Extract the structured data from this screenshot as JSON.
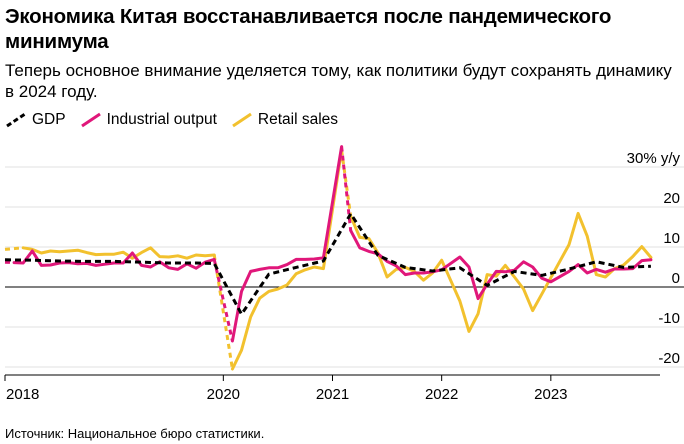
{
  "title": "Экономика Китая восстанавливается после пандемического минимума",
  "subtitle": "Теперь основное внимание уделяется тому, как политики будут сохранять динамику в 2024 году.",
  "source": "Источник: Национальное бюро статистики.",
  "colors": {
    "gdp": "#000000",
    "industrial": "#e0177a",
    "retail": "#f2c12e",
    "axis": "#000000",
    "grid": "#e2e2e2"
  },
  "chart_data": {
    "type": "line",
    "x_unit": "months since Jan 2018",
    "xlim": [
      0,
      72
    ],
    "ylim": [
      -22,
      33
    ],
    "y_ticks": [
      -20,
      -10,
      0,
      10,
      20,
      30
    ],
    "y_tick_labels": [
      "-20",
      "-10",
      "0",
      "10",
      "20",
      "30% y/y"
    ],
    "x_ticks": [
      0,
      24,
      36,
      48,
      60
    ],
    "x_tick_labels": [
      "2018",
      "2020",
      "2021",
      "2022",
      "2023"
    ],
    "legend_position": "top-left",
    "series": [
      {
        "name": "GDP",
        "style": "dashed",
        "points": [
          [
            0,
            6.8
          ],
          [
            3,
            6.7
          ],
          [
            6,
            6.5
          ],
          [
            9,
            6.4
          ],
          [
            12,
            6.4
          ],
          [
            15,
            6.2
          ],
          [
            18,
            6.0
          ],
          [
            21,
            6.0
          ],
          [
            23,
            5.9
          ],
          [
            26,
            -6.8
          ],
          [
            29,
            3.2
          ],
          [
            32,
            4.9
          ],
          [
            35,
            6.5
          ],
          [
            38,
            18.3
          ],
          [
            41,
            7.9
          ],
          [
            44,
            4.9
          ],
          [
            47,
            4.0
          ],
          [
            50,
            4.8
          ],
          [
            53,
            0.4
          ],
          [
            56,
            3.9
          ],
          [
            59,
            2.9
          ],
          [
            62,
            4.5
          ],
          [
            65,
            6.3
          ],
          [
            68,
            4.9
          ],
          [
            71,
            5.2
          ]
        ]
      },
      {
        "name": "Industrial output",
        "style": "solid",
        "dashed_until": 1,
        "dashed_gaps": [
          [
            23,
            25
          ],
          [
            37,
            38
          ],
          [
            49,
            50
          ],
          [
            61,
            62
          ]
        ],
        "points": [
          [
            0,
            6.2
          ],
          [
            1,
            6.1
          ],
          [
            2,
            6.0
          ],
          [
            3,
            9.0
          ],
          [
            4,
            5.4
          ],
          [
            5,
            5.5
          ],
          [
            6,
            6.0
          ],
          [
            7,
            6.1
          ],
          [
            8,
            5.8
          ],
          [
            9,
            5.9
          ],
          [
            10,
            5.4
          ],
          [
            11,
            5.7
          ],
          [
            12,
            6.0
          ],
          [
            13,
            6.0
          ],
          [
            14,
            8.5
          ],
          [
            15,
            5.4
          ],
          [
            16,
            5.0
          ],
          [
            17,
            6.3
          ],
          [
            18,
            4.8
          ],
          [
            19,
            4.4
          ],
          [
            20,
            5.8
          ],
          [
            21,
            4.7
          ],
          [
            22,
            6.2
          ],
          [
            23,
            6.9
          ],
          [
            25,
            -13.5
          ],
          [
            26,
            -1.1
          ],
          [
            27,
            3.9
          ],
          [
            28,
            4.4
          ],
          [
            29,
            4.8
          ],
          [
            30,
            4.8
          ],
          [
            31,
            5.6
          ],
          [
            32,
            6.9
          ],
          [
            33,
            6.9
          ],
          [
            34,
            7.0
          ],
          [
            35,
            7.3
          ],
          [
            37,
            35.1
          ],
          [
            38,
            14.1
          ],
          [
            39,
            9.8
          ],
          [
            40,
            8.9
          ],
          [
            41,
            8.3
          ],
          [
            42,
            6.4
          ],
          [
            43,
            5.3
          ],
          [
            44,
            3.1
          ],
          [
            45,
            3.5
          ],
          [
            46,
            3.5
          ],
          [
            47,
            3.8
          ],
          [
            48,
            4.3
          ],
          [
            50,
            7.5
          ],
          [
            51,
            5.0
          ],
          [
            52,
            -2.9
          ],
          [
            53,
            0.7
          ],
          [
            54,
            3.9
          ],
          [
            55,
            3.8
          ],
          [
            56,
            4.2
          ],
          [
            57,
            6.3
          ],
          [
            58,
            5.0
          ],
          [
            59,
            2.2
          ],
          [
            60,
            1.3
          ],
          [
            62,
            3.9
          ],
          [
            63,
            5.6
          ],
          [
            64,
            3.5
          ],
          [
            65,
            4.4
          ],
          [
            66,
            3.7
          ],
          [
            67,
            4.5
          ],
          [
            68,
            4.5
          ],
          [
            69,
            4.6
          ],
          [
            70,
            6.6
          ],
          [
            71,
            6.8
          ]
        ]
      },
      {
        "name": "Retail sales",
        "style": "solid",
        "dashed_until": 2,
        "dashed_gaps": [
          [
            23,
            25
          ],
          [
            37,
            38
          ],
          [
            49,
            50
          ],
          [
            61,
            62
          ]
        ],
        "points": [
          [
            0,
            9.4
          ],
          [
            2,
            9.8
          ],
          [
            3,
            9.4
          ],
          [
            4,
            8.5
          ],
          [
            5,
            9.0
          ],
          [
            6,
            8.8
          ],
          [
            7,
            9.0
          ],
          [
            8,
            9.2
          ],
          [
            9,
            8.6
          ],
          [
            10,
            8.1
          ],
          [
            11,
            8.2
          ],
          [
            12,
            8.2
          ],
          [
            13,
            8.7
          ],
          [
            14,
            7.2
          ],
          [
            15,
            8.6
          ],
          [
            16,
            9.8
          ],
          [
            17,
            7.6
          ],
          [
            18,
            7.5
          ],
          [
            19,
            7.8
          ],
          [
            20,
            7.2
          ],
          [
            21,
            8.0
          ],
          [
            22,
            7.8
          ],
          [
            23,
            8.0
          ],
          [
            25,
            -20.5
          ],
          [
            26,
            -15.8
          ],
          [
            27,
            -7.5
          ],
          [
            28,
            -2.8
          ],
          [
            29,
            -1.1
          ],
          [
            30,
            -0.5
          ],
          [
            31,
            0.5
          ],
          [
            32,
            3.3
          ],
          [
            33,
            4.3
          ],
          [
            34,
            5.0
          ],
          [
            35,
            4.6
          ],
          [
            37,
            34.2
          ],
          [
            38,
            17.7
          ],
          [
            39,
            12.4
          ],
          [
            40,
            12.1
          ],
          [
            41,
            8.5
          ],
          [
            42,
            2.5
          ],
          [
            43,
            4.4
          ],
          [
            44,
            4.9
          ],
          [
            45,
            3.9
          ],
          [
            46,
            1.7
          ],
          [
            47,
            3.5
          ],
          [
            48,
            6.7
          ],
          [
            50,
            -3.5
          ],
          [
            51,
            -11.1
          ],
          [
            52,
            -6.7
          ],
          [
            53,
            3.1
          ],
          [
            54,
            2.7
          ],
          [
            55,
            5.4
          ],
          [
            56,
            2.5
          ],
          [
            57,
            -0.5
          ],
          [
            58,
            -5.9
          ],
          [
            59,
            -1.8
          ],
          [
            62,
            10.6
          ],
          [
            63,
            18.4
          ],
          [
            64,
            12.7
          ],
          [
            65,
            3.1
          ],
          [
            66,
            2.5
          ],
          [
            67,
            4.6
          ],
          [
            68,
            5.5
          ],
          [
            69,
            7.6
          ],
          [
            70,
            10.1
          ],
          [
            71,
            7.4
          ]
        ]
      }
    ]
  }
}
